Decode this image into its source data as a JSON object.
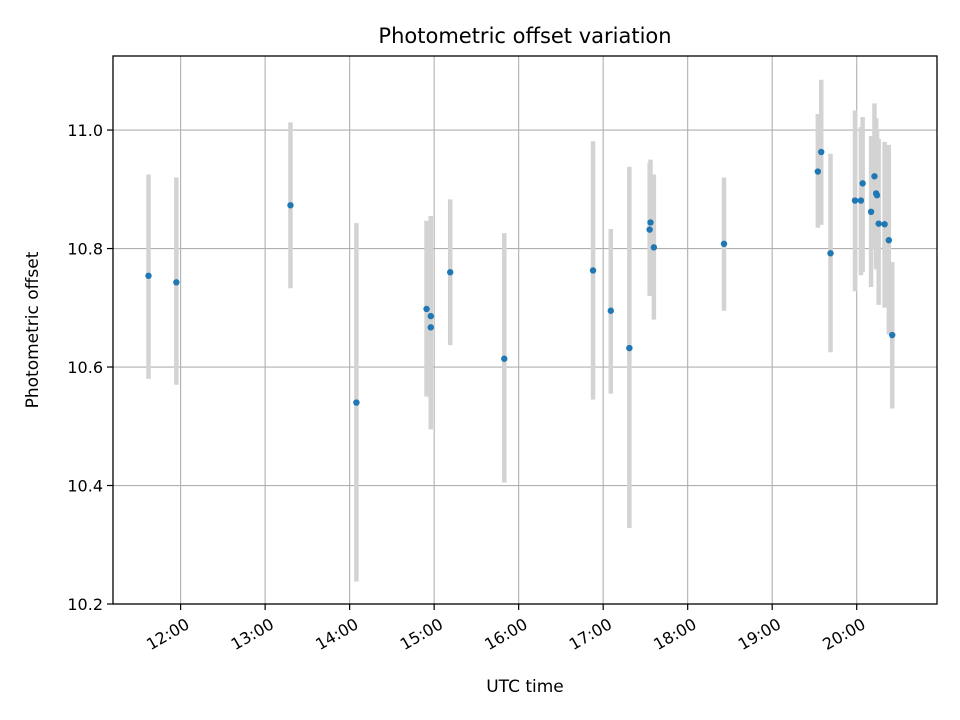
{
  "chart_data": {
    "type": "scatter",
    "title": "Photometric offset variation",
    "xlabel": "UTC time",
    "ylabel": "Photometric offset",
    "x_unit": "hours UTC",
    "xlim": [
      11.2,
      20.95
    ],
    "ylim": [
      10.2,
      11.125
    ],
    "grid": true,
    "x_ticks": [
      {
        "value": 12,
        "label": "12:00"
      },
      {
        "value": 13,
        "label": "13:00"
      },
      {
        "value": 14,
        "label": "14:00"
      },
      {
        "value": 15,
        "label": "15:00"
      },
      {
        "value": 16,
        "label": "16:00"
      },
      {
        "value": 17,
        "label": "17:00"
      },
      {
        "value": 18,
        "label": "18:00"
      },
      {
        "value": 19,
        "label": "19:00"
      },
      {
        "value": 20,
        "label": "20:00"
      }
    ],
    "y_ticks": [
      {
        "value": 10.2,
        "label": "10.2"
      },
      {
        "value": 10.4,
        "label": "10.4"
      },
      {
        "value": 10.6,
        "label": "10.6"
      },
      {
        "value": 10.8,
        "label": "10.8"
      },
      {
        "value": 11.0,
        "label": "11.0"
      }
    ],
    "colors": {
      "point": "#1f77b4",
      "errorbar": "#d3d3d3",
      "grid": "#b0b0b0",
      "axes": "#000000"
    },
    "points": [
      {
        "x": 11.62,
        "y": 10.754,
        "yerr": [
          10.58,
          10.925
        ]
      },
      {
        "x": 11.95,
        "y": 10.743,
        "yerr": [
          10.57,
          10.92
        ]
      },
      {
        "x": 13.3,
        "y": 10.873,
        "yerr": [
          10.733,
          11.013
        ]
      },
      {
        "x": 14.08,
        "y": 10.54,
        "yerr": [
          10.238,
          10.843
        ]
      },
      {
        "x": 14.91,
        "y": 10.698,
        "yerr": [
          10.55,
          10.847
        ]
      },
      {
        "x": 14.96,
        "y": 10.686,
        "yerr": [
          10.495,
          10.855
        ]
      },
      {
        "x": 14.96,
        "y": 10.667,
        "yerr": [
          10.495,
          10.85
        ]
      },
      {
        "x": 15.19,
        "y": 10.76,
        "yerr": [
          10.637,
          10.883
        ]
      },
      {
        "x": 15.83,
        "y": 10.614,
        "yerr": [
          10.405,
          10.826
        ]
      },
      {
        "x": 16.88,
        "y": 10.763,
        "yerr": [
          10.545,
          10.981
        ]
      },
      {
        "x": 17.09,
        "y": 10.695,
        "yerr": [
          10.555,
          10.833
        ]
      },
      {
        "x": 17.31,
        "y": 10.632,
        "yerr": [
          10.328,
          10.938
        ]
      },
      {
        "x": 17.55,
        "y": 10.832,
        "yerr": [
          10.72,
          10.945
        ]
      },
      {
        "x": 17.56,
        "y": 10.844,
        "yerr": [
          10.72,
          10.95
        ]
      },
      {
        "x": 17.6,
        "y": 10.802,
        "yerr": [
          10.68,
          10.925
        ]
      },
      {
        "x": 18.43,
        "y": 10.808,
        "yerr": [
          10.695,
          10.92
        ]
      },
      {
        "x": 19.54,
        "y": 10.93,
        "yerr": [
          10.835,
          11.027
        ]
      },
      {
        "x": 19.58,
        "y": 10.963,
        "yerr": [
          10.84,
          11.085
        ]
      },
      {
        "x": 19.69,
        "y": 10.792,
        "yerr": [
          10.625,
          10.96
        ]
      },
      {
        "x": 19.98,
        "y": 10.881,
        "yerr": [
          10.728,
          11.033
        ]
      },
      {
        "x": 20.05,
        "y": 10.881,
        "yerr": [
          10.755,
          11.005
        ]
      },
      {
        "x": 20.07,
        "y": 10.91,
        "yerr": [
          10.76,
          11.022
        ]
      },
      {
        "x": 20.17,
        "y": 10.862,
        "yerr": [
          10.735,
          10.99
        ]
      },
      {
        "x": 20.21,
        "y": 10.922,
        "yerr": [
          10.8,
          11.045
        ]
      },
      {
        "x": 20.23,
        "y": 10.893,
        "yerr": [
          10.765,
          11.02
        ]
      },
      {
        "x": 20.24,
        "y": 10.89,
        "yerr": [
          10.77,
          11.0
        ]
      },
      {
        "x": 20.26,
        "y": 10.842,
        "yerr": [
          10.705,
          10.985
        ]
      },
      {
        "x": 20.33,
        "y": 10.841,
        "yerr": [
          10.7,
          10.98
        ]
      },
      {
        "x": 20.38,
        "y": 10.814,
        "yerr": [
          10.655,
          10.975
        ]
      },
      {
        "x": 20.42,
        "y": 10.654,
        "yerr": [
          10.53,
          10.777
        ]
      }
    ]
  }
}
